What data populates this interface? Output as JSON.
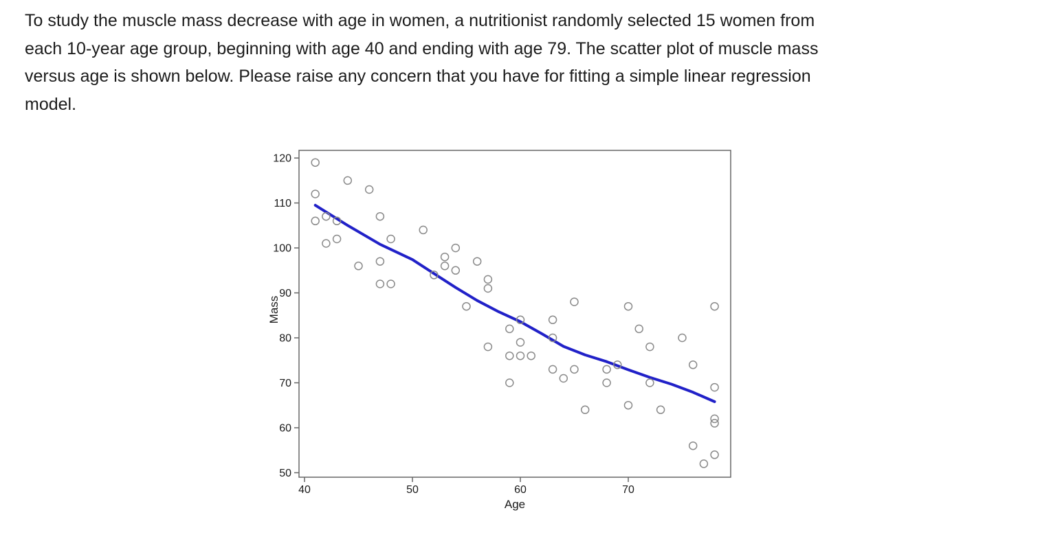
{
  "question": {
    "lines": [
      "To study the muscle mass decrease with age in women, a nutritionist randomly selected 15 women from",
      "each 10-year age group, beginning with age 40 and ending with age 79. The scatter plot of muscle mass",
      "versus age is shown below. Please raise any concern that you have for fitting a simple linear regression",
      "model."
    ]
  },
  "chart_data": {
    "type": "scatter",
    "title": "",
    "xlabel": "Age",
    "ylabel": "Mass",
    "x_ticks": [
      40,
      50,
      60,
      70
    ],
    "y_ticks": [
      50,
      60,
      70,
      80,
      90,
      100,
      110,
      120
    ],
    "xlim": [
      39.49,
      79.49
    ],
    "ylim": [
      49.0,
      121.7
    ],
    "grid": false,
    "legend": "none",
    "marker": {
      "shape": "open-circle",
      "color": "#8a8a8a"
    },
    "points": [
      [
        41,
        119
      ],
      [
        41,
        112
      ],
      [
        41,
        106
      ],
      [
        42,
        107
      ],
      [
        42,
        101
      ],
      [
        43,
        106
      ],
      [
        43,
        102
      ],
      [
        44,
        115
      ],
      [
        45,
        96
      ],
      [
        46,
        113
      ],
      [
        47,
        107
      ],
      [
        47,
        97
      ],
      [
        47,
        92
      ],
      [
        48,
        102
      ],
      [
        48,
        92
      ],
      [
        51,
        104
      ],
      [
        52,
        94
      ],
      [
        53,
        98
      ],
      [
        53,
        96
      ],
      [
        54,
        100
      ],
      [
        54,
        95
      ],
      [
        55,
        87
      ],
      [
        56,
        97
      ],
      [
        57,
        93
      ],
      [
        57,
        91
      ],
      [
        57,
        78
      ],
      [
        59,
        82
      ],
      [
        59,
        76
      ],
      [
        59,
        70
      ],
      [
        60,
        84
      ],
      [
        60,
        79
      ],
      [
        60,
        76
      ],
      [
        61,
        76
      ],
      [
        63,
        84
      ],
      [
        63,
        80
      ],
      [
        63,
        73
      ],
      [
        64,
        71
      ],
      [
        65,
        88
      ],
      [
        65,
        73
      ],
      [
        66,
        64
      ],
      [
        68,
        73
      ],
      [
        68,
        70
      ],
      [
        69,
        74
      ],
      [
        70,
        87
      ],
      [
        70,
        65
      ],
      [
        71,
        82
      ],
      [
        72,
        78
      ],
      [
        72,
        70
      ],
      [
        73,
        64
      ],
      [
        75,
        80
      ],
      [
        76,
        74
      ],
      [
        76,
        56
      ],
      [
        77,
        52
      ],
      [
        78,
        87
      ],
      [
        78,
        69
      ],
      [
        78,
        62
      ],
      [
        78,
        61
      ],
      [
        78,
        54
      ]
    ],
    "smooth_line": {
      "color": "#2121c8",
      "points": [
        [
          41,
          109.5
        ],
        [
          44,
          105.0
        ],
        [
          47,
          100.8
        ],
        [
          50,
          97.4
        ],
        [
          52,
          94.3
        ],
        [
          54,
          91.2
        ],
        [
          56,
          88.3
        ],
        [
          58,
          85.8
        ],
        [
          60,
          83.6
        ],
        [
          62,
          80.9
        ],
        [
          64,
          78.1
        ],
        [
          66,
          76.2
        ],
        [
          68,
          74.7
        ],
        [
          70,
          72.9
        ],
        [
          72,
          71.2
        ],
        [
          74,
          69.7
        ],
        [
          76,
          67.9
        ],
        [
          78,
          65.8
        ]
      ]
    }
  },
  "colors": {
    "background": "#ffffff",
    "frame": "#666666",
    "tick_text": "#1a1a1a",
    "body_text": "#1c1c1c"
  }
}
